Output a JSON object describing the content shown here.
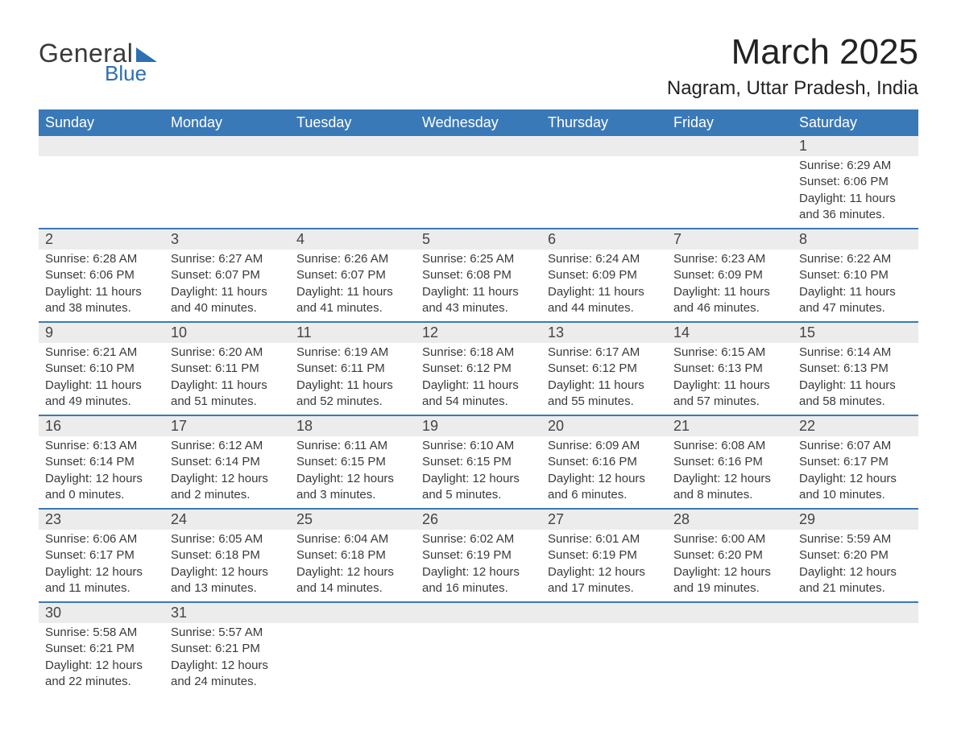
{
  "colors": {
    "header_bg": "#3a79b7",
    "header_text": "#ffffff",
    "daynum_bg": "#ececec",
    "row_border": "#3a79b7",
    "body_text": "#3a3a3a",
    "logo_blue": "#2d6fb2",
    "page_bg": "#ffffff"
  },
  "typography": {
    "title_fontsize": 44,
    "location_fontsize": 24,
    "header_fontsize": 18,
    "daynum_fontsize": 18,
    "detail_fontsize": 15,
    "font_family": "Arial"
  },
  "logo": {
    "general": "General",
    "blue": "Blue"
  },
  "title": "March 2025",
  "location": "Nagram, Uttar Pradesh, India",
  "weekdays": [
    "Sunday",
    "Monday",
    "Tuesday",
    "Wednesday",
    "Thursday",
    "Friday",
    "Saturday"
  ],
  "layout": {
    "columns": 7,
    "first_day_column_index": 6
  },
  "weeks": [
    [
      null,
      null,
      null,
      null,
      null,
      null,
      {
        "n": "1",
        "sr": "Sunrise: 6:29 AM",
        "ss": "Sunset: 6:06 PM",
        "d1": "Daylight: 11 hours",
        "d2": "and 36 minutes."
      }
    ],
    [
      {
        "n": "2",
        "sr": "Sunrise: 6:28 AM",
        "ss": "Sunset: 6:06 PM",
        "d1": "Daylight: 11 hours",
        "d2": "and 38 minutes."
      },
      {
        "n": "3",
        "sr": "Sunrise: 6:27 AM",
        "ss": "Sunset: 6:07 PM",
        "d1": "Daylight: 11 hours",
        "d2": "and 40 minutes."
      },
      {
        "n": "4",
        "sr": "Sunrise: 6:26 AM",
        "ss": "Sunset: 6:07 PM",
        "d1": "Daylight: 11 hours",
        "d2": "and 41 minutes."
      },
      {
        "n": "5",
        "sr": "Sunrise: 6:25 AM",
        "ss": "Sunset: 6:08 PM",
        "d1": "Daylight: 11 hours",
        "d2": "and 43 minutes."
      },
      {
        "n": "6",
        "sr": "Sunrise: 6:24 AM",
        "ss": "Sunset: 6:09 PM",
        "d1": "Daylight: 11 hours",
        "d2": "and 44 minutes."
      },
      {
        "n": "7",
        "sr": "Sunrise: 6:23 AM",
        "ss": "Sunset: 6:09 PM",
        "d1": "Daylight: 11 hours",
        "d2": "and 46 minutes."
      },
      {
        "n": "8",
        "sr": "Sunrise: 6:22 AM",
        "ss": "Sunset: 6:10 PM",
        "d1": "Daylight: 11 hours",
        "d2": "and 47 minutes."
      }
    ],
    [
      {
        "n": "9",
        "sr": "Sunrise: 6:21 AM",
        "ss": "Sunset: 6:10 PM",
        "d1": "Daylight: 11 hours",
        "d2": "and 49 minutes."
      },
      {
        "n": "10",
        "sr": "Sunrise: 6:20 AM",
        "ss": "Sunset: 6:11 PM",
        "d1": "Daylight: 11 hours",
        "d2": "and 51 minutes."
      },
      {
        "n": "11",
        "sr": "Sunrise: 6:19 AM",
        "ss": "Sunset: 6:11 PM",
        "d1": "Daylight: 11 hours",
        "d2": "and 52 minutes."
      },
      {
        "n": "12",
        "sr": "Sunrise: 6:18 AM",
        "ss": "Sunset: 6:12 PM",
        "d1": "Daylight: 11 hours",
        "d2": "and 54 minutes."
      },
      {
        "n": "13",
        "sr": "Sunrise: 6:17 AM",
        "ss": "Sunset: 6:12 PM",
        "d1": "Daylight: 11 hours",
        "d2": "and 55 minutes."
      },
      {
        "n": "14",
        "sr": "Sunrise: 6:15 AM",
        "ss": "Sunset: 6:13 PM",
        "d1": "Daylight: 11 hours",
        "d2": "and 57 minutes."
      },
      {
        "n": "15",
        "sr": "Sunrise: 6:14 AM",
        "ss": "Sunset: 6:13 PM",
        "d1": "Daylight: 11 hours",
        "d2": "and 58 minutes."
      }
    ],
    [
      {
        "n": "16",
        "sr": "Sunrise: 6:13 AM",
        "ss": "Sunset: 6:14 PM",
        "d1": "Daylight: 12 hours",
        "d2": "and 0 minutes."
      },
      {
        "n": "17",
        "sr": "Sunrise: 6:12 AM",
        "ss": "Sunset: 6:14 PM",
        "d1": "Daylight: 12 hours",
        "d2": "and 2 minutes."
      },
      {
        "n": "18",
        "sr": "Sunrise: 6:11 AM",
        "ss": "Sunset: 6:15 PM",
        "d1": "Daylight: 12 hours",
        "d2": "and 3 minutes."
      },
      {
        "n": "19",
        "sr": "Sunrise: 6:10 AM",
        "ss": "Sunset: 6:15 PM",
        "d1": "Daylight: 12 hours",
        "d2": "and 5 minutes."
      },
      {
        "n": "20",
        "sr": "Sunrise: 6:09 AM",
        "ss": "Sunset: 6:16 PM",
        "d1": "Daylight: 12 hours",
        "d2": "and 6 minutes."
      },
      {
        "n": "21",
        "sr": "Sunrise: 6:08 AM",
        "ss": "Sunset: 6:16 PM",
        "d1": "Daylight: 12 hours",
        "d2": "and 8 minutes."
      },
      {
        "n": "22",
        "sr": "Sunrise: 6:07 AM",
        "ss": "Sunset: 6:17 PM",
        "d1": "Daylight: 12 hours",
        "d2": "and 10 minutes."
      }
    ],
    [
      {
        "n": "23",
        "sr": "Sunrise: 6:06 AM",
        "ss": "Sunset: 6:17 PM",
        "d1": "Daylight: 12 hours",
        "d2": "and 11 minutes."
      },
      {
        "n": "24",
        "sr": "Sunrise: 6:05 AM",
        "ss": "Sunset: 6:18 PM",
        "d1": "Daylight: 12 hours",
        "d2": "and 13 minutes."
      },
      {
        "n": "25",
        "sr": "Sunrise: 6:04 AM",
        "ss": "Sunset: 6:18 PM",
        "d1": "Daylight: 12 hours",
        "d2": "and 14 minutes."
      },
      {
        "n": "26",
        "sr": "Sunrise: 6:02 AM",
        "ss": "Sunset: 6:19 PM",
        "d1": "Daylight: 12 hours",
        "d2": "and 16 minutes."
      },
      {
        "n": "27",
        "sr": "Sunrise: 6:01 AM",
        "ss": "Sunset: 6:19 PM",
        "d1": "Daylight: 12 hours",
        "d2": "and 17 minutes."
      },
      {
        "n": "28",
        "sr": "Sunrise: 6:00 AM",
        "ss": "Sunset: 6:20 PM",
        "d1": "Daylight: 12 hours",
        "d2": "and 19 minutes."
      },
      {
        "n": "29",
        "sr": "Sunrise: 5:59 AM",
        "ss": "Sunset: 6:20 PM",
        "d1": "Daylight: 12 hours",
        "d2": "and 21 minutes."
      }
    ],
    [
      {
        "n": "30",
        "sr": "Sunrise: 5:58 AM",
        "ss": "Sunset: 6:21 PM",
        "d1": "Daylight: 12 hours",
        "d2": "and 22 minutes."
      },
      {
        "n": "31",
        "sr": "Sunrise: 5:57 AM",
        "ss": "Sunset: 6:21 PM",
        "d1": "Daylight: 12 hours",
        "d2": "and 24 minutes."
      },
      null,
      null,
      null,
      null,
      null
    ]
  ]
}
